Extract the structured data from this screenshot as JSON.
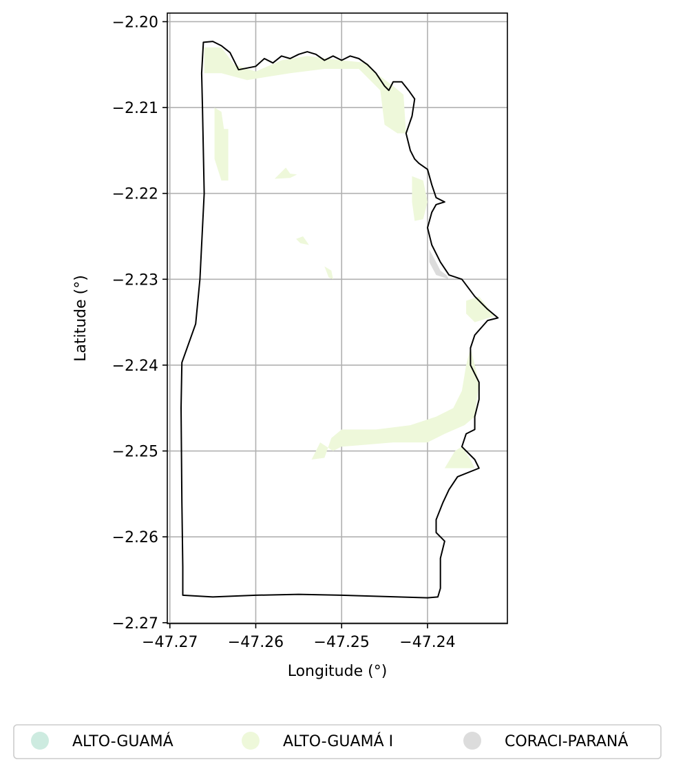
{
  "map": {
    "type": "choropleth",
    "xlabel": "Longitude (°)",
    "ylabel": "Latitude (°)",
    "xlim": [
      -47.2703,
      -47.2307
    ],
    "ylim": [
      -2.2701,
      -2.199
    ],
    "grid": true,
    "legend_placement": "bottom-center",
    "x_ticks": [
      {
        "value": -47.27,
        "label": "−47.27"
      },
      {
        "value": -47.26,
        "label": "−47.26"
      },
      {
        "value": -47.25,
        "label": "−47.25"
      },
      {
        "value": -47.24,
        "label": "−47.24"
      }
    ],
    "y_ticks": [
      {
        "value": -2.2,
        "label": "−2.20"
      },
      {
        "value": -2.21,
        "label": "−2.21"
      },
      {
        "value": -2.22,
        "label": "−2.22"
      },
      {
        "value": -2.23,
        "label": "−2.23"
      },
      {
        "value": -2.24,
        "label": "−2.24"
      },
      {
        "value": -2.25,
        "label": "−2.25"
      },
      {
        "value": -2.26,
        "label": "−2.26"
      },
      {
        "value": -2.27,
        "label": "−2.27"
      }
    ],
    "legend": [
      {
        "label": "ALTO-GUAMÁ",
        "color": "#cdebe0"
      },
      {
        "label": "ALTO-GUAMÁ I",
        "color": "#eef8da"
      },
      {
        "label": "CORACI-PARANÁ",
        "color": "#dcdcdc"
      }
    ],
    "outline": [
      [
        -47.2661,
        -2.2024
      ],
      [
        -47.265,
        -2.2023
      ],
      [
        -47.264,
        -2.2028
      ],
      [
        -47.2635,
        -2.2032
      ],
      [
        -47.263,
        -2.2036
      ],
      [
        -47.262,
        -2.2056
      ],
      [
        -47.26,
        -2.2052
      ],
      [
        -47.259,
        -2.2043
      ],
      [
        -47.258,
        -2.2048
      ],
      [
        -47.257,
        -2.204
      ],
      [
        -47.256,
        -2.2043
      ],
      [
        -47.255,
        -2.2038
      ],
      [
        -47.254,
        -2.2035
      ],
      [
        -47.253,
        -2.2038
      ],
      [
        -47.252,
        -2.2045
      ],
      [
        -47.251,
        -2.204
      ],
      [
        -47.25,
        -2.2045
      ],
      [
        -47.249,
        -2.204
      ],
      [
        -47.248,
        -2.2043
      ],
      [
        -47.247,
        -2.205
      ],
      [
        -47.246,
        -2.206
      ],
      [
        -47.245,
        -2.2075
      ],
      [
        -47.2445,
        -2.208
      ],
      [
        -47.244,
        -2.207
      ],
      [
        -47.243,
        -2.207
      ],
      [
        -47.2422,
        -2.208
      ],
      [
        -47.2415,
        -2.209
      ],
      [
        -47.2418,
        -2.211
      ],
      [
        -47.2425,
        -2.213
      ],
      [
        -47.242,
        -2.215
      ],
      [
        -47.2415,
        -2.216
      ],
      [
        -47.241,
        -2.2165
      ],
      [
        -47.24,
        -2.2172
      ],
      [
        -47.2395,
        -2.219
      ],
      [
        -47.239,
        -2.2205
      ],
      [
        -47.238,
        -2.221
      ],
      [
        -47.239,
        -2.2213
      ],
      [
        -47.2395,
        -2.2222
      ],
      [
        -47.24,
        -2.224
      ],
      [
        -47.2395,
        -2.226
      ],
      [
        -47.2385,
        -2.228
      ],
      [
        -47.2375,
        -2.2295
      ],
      [
        -47.236,
        -2.23
      ],
      [
        -47.2345,
        -2.232
      ],
      [
        -47.233,
        -2.2335
      ],
      [
        -47.2318,
        -2.2345
      ],
      [
        -47.233,
        -2.2348
      ],
      [
        -47.2345,
        -2.2365
      ],
      [
        -47.235,
        -2.238
      ],
      [
        -47.235,
        -2.24
      ],
      [
        -47.2345,
        -2.241
      ],
      [
        -47.234,
        -2.242
      ],
      [
        -47.234,
        -2.244
      ],
      [
        -47.2345,
        -2.246
      ],
      [
        -47.2345,
        -2.2475
      ],
      [
        -47.2355,
        -2.248
      ],
      [
        -47.236,
        -2.2495
      ],
      [
        -47.2345,
        -2.251
      ],
      [
        -47.234,
        -2.252
      ],
      [
        -47.2365,
        -2.253
      ],
      [
        -47.2375,
        -2.2545
      ],
      [
        -47.2382,
        -2.256
      ],
      [
        -47.239,
        -2.258
      ],
      [
        -47.239,
        -2.2595
      ],
      [
        -47.238,
        -2.2605
      ],
      [
        -47.2385,
        -2.2625
      ],
      [
        -47.2385,
        -2.2645
      ],
      [
        -47.2385,
        -2.266
      ],
      [
        -47.2388,
        -2.267
      ],
      [
        -47.24,
        -2.2671
      ],
      [
        -47.25,
        -2.2668
      ],
      [
        -47.255,
        -2.2667
      ],
      [
        -47.26,
        -2.2668
      ],
      [
        -47.265,
        -2.267
      ],
      [
        -47.2685,
        -2.2668
      ],
      [
        -47.2685,
        -2.2635
      ],
      [
        -47.2686,
        -2.256
      ],
      [
        -47.2687,
        -2.245
      ],
      [
        -47.2686,
        -2.2397
      ],
      [
        -47.267,
        -2.2352
      ],
      [
        -47.2665,
        -2.23
      ],
      [
        -47.266,
        -2.22
      ],
      [
        -47.2662,
        -2.21
      ],
      [
        -47.2663,
        -2.206
      ],
      [
        -47.2661,
        -2.2024
      ]
    ],
    "regions": [
      {
        "category": "ALTO-GUAMÁ I",
        "points": [
          [
            -47.266,
            -2.203
          ],
          [
            -47.264,
            -2.203
          ],
          [
            -47.2625,
            -2.205
          ],
          [
            -47.26,
            -2.2058
          ],
          [
            -47.257,
            -2.2045
          ],
          [
            -47.254,
            -2.204
          ],
          [
            -47.25,
            -2.2045
          ],
          [
            -47.247,
            -2.2048
          ],
          [
            -47.246,
            -2.206
          ],
          [
            -47.244,
            -2.2075
          ],
          [
            -47.2428,
            -2.2085
          ],
          [
            -47.2425,
            -2.213
          ],
          [
            -47.2435,
            -2.213
          ],
          [
            -47.245,
            -2.212
          ],
          [
            -47.2455,
            -2.208
          ],
          [
            -47.248,
            -2.2055
          ],
          [
            -47.252,
            -2.2055
          ],
          [
            -47.256,
            -2.206
          ],
          [
            -47.261,
            -2.2068
          ],
          [
            -47.264,
            -2.206
          ],
          [
            -47.266,
            -2.206
          ]
        ]
      },
      {
        "category": "ALTO-GUAMÁ I",
        "points": [
          [
            -47.2648,
            -2.21
          ],
          [
            -47.264,
            -2.2105
          ],
          [
            -47.2637,
            -2.2125
          ],
          [
            -47.2632,
            -2.2125
          ],
          [
            -47.2632,
            -2.2185
          ],
          [
            -47.2622,
            -2.2185
          ],
          [
            -47.264,
            -2.2185
          ],
          [
            -47.2648,
            -2.216
          ]
        ]
      },
      {
        "category": "ALTO-GUAMÁ I",
        "points": [
          [
            -47.2578,
            -2.2183
          ],
          [
            -47.2565,
            -2.217
          ],
          [
            -47.256,
            -2.2177
          ],
          [
            -47.2552,
            -2.2178
          ],
          [
            -47.256,
            -2.2182
          ]
        ]
      },
      {
        "category": "ALTO-GUAMÁ I",
        "points": [
          [
            -47.2418,
            -2.218
          ],
          [
            -47.2405,
            -2.2185
          ],
          [
            -47.24,
            -2.221
          ],
          [
            -47.2405,
            -2.223
          ],
          [
            -47.2415,
            -2.2232
          ],
          [
            -47.2418,
            -2.221
          ]
        ]
      },
      {
        "category": "ALTO-GUAMÁ I",
        "points": [
          [
            -47.2553,
            -2.2253
          ],
          [
            -47.2545,
            -2.225
          ],
          [
            -47.2538,
            -2.226
          ],
          [
            -47.2548,
            -2.2258
          ]
        ]
      },
      {
        "category": "ALTO-GUAMÁ I",
        "points": [
          [
            -47.252,
            -2.2285
          ],
          [
            -47.2512,
            -2.229
          ],
          [
            -47.251,
            -2.23
          ],
          [
            -47.2515,
            -2.2298
          ]
        ]
      },
      {
        "category": "ALTO-GUAMÁ I",
        "points": [
          [
            -47.2355,
            -2.2325
          ],
          [
            -47.234,
            -2.232
          ],
          [
            -47.2322,
            -2.2343
          ],
          [
            -47.2345,
            -2.235
          ],
          [
            -47.2355,
            -2.234
          ]
        ]
      },
      {
        "category": "ALTO-GUAMÁ I",
        "points": [
          [
            -47.235,
            -2.238
          ],
          [
            -47.234,
            -2.242
          ],
          [
            -47.2345,
            -2.246
          ],
          [
            -47.2357,
            -2.247
          ],
          [
            -47.238,
            -2.248
          ],
          [
            -47.24,
            -2.249
          ],
          [
            -47.244,
            -2.249
          ],
          [
            -47.25,
            -2.2495
          ],
          [
            -47.251,
            -2.25
          ],
          [
            -47.2525,
            -2.249
          ],
          [
            -47.2535,
            -2.251
          ],
          [
            -47.252,
            -2.2508
          ],
          [
            -47.2512,
            -2.2485
          ],
          [
            -47.25,
            -2.2475
          ],
          [
            -47.246,
            -2.2475
          ],
          [
            -47.242,
            -2.247
          ],
          [
            -47.239,
            -2.246
          ],
          [
            -47.237,
            -2.245
          ],
          [
            -47.236,
            -2.243
          ],
          [
            -47.2355,
            -2.24
          ]
        ]
      },
      {
        "category": "ALTO-GUAMÁ I",
        "points": [
          [
            -47.238,
            -2.252
          ],
          [
            -47.2368,
            -2.25
          ],
          [
            -47.236,
            -2.2495
          ],
          [
            -47.235,
            -2.251
          ],
          [
            -47.2345,
            -2.252
          ],
          [
            -47.2365,
            -2.252
          ]
        ]
      },
      {
        "category": "CORACI-PARANÁ",
        "points": [
          [
            -47.2398,
            -2.2265
          ],
          [
            -47.239,
            -2.228
          ],
          [
            -47.2385,
            -2.229
          ],
          [
            -47.2378,
            -2.2295
          ],
          [
            -47.2375,
            -2.23
          ],
          [
            -47.239,
            -2.2295
          ],
          [
            -47.2398,
            -2.228
          ]
        ]
      }
    ]
  }
}
